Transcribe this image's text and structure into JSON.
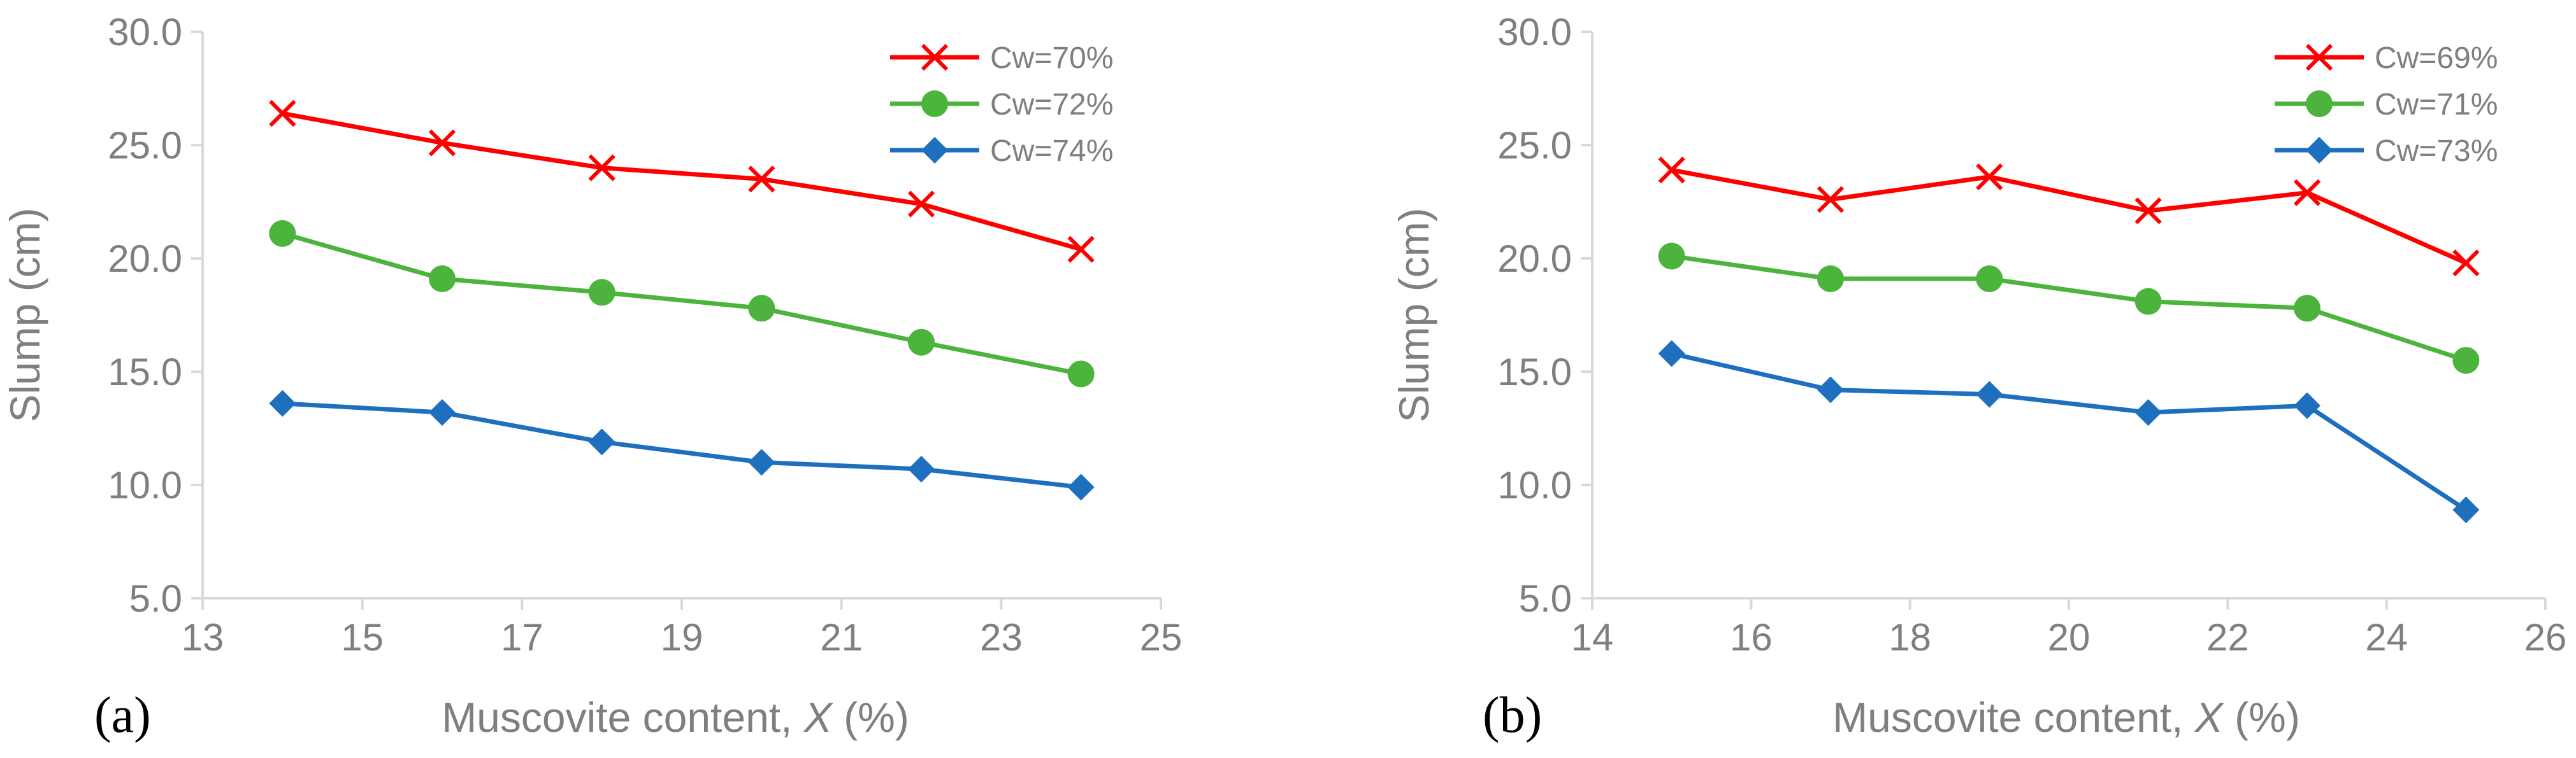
{
  "chart_data": [
    {
      "type": "line",
      "panel_label": "(a)",
      "title": "",
      "xlabel_prefix": "Muscovite content, ",
      "xlabel_var": "X",
      "xlabel_suffix": " (%)",
      "ylabel": "Slump (cm)",
      "xlim": [
        13,
        25
      ],
      "ylim": [
        5,
        30
      ],
      "xticks": [
        "13",
        "15",
        "17",
        "19",
        "21",
        "23",
        "25"
      ],
      "yticks": [
        "5.0",
        "10.0",
        "15.0",
        "20.0",
        "25.0",
        "30.0"
      ],
      "x": [
        14,
        16,
        18,
        20,
        22,
        24
      ],
      "legend_position": "top-right",
      "grid": false,
      "series": [
        {
          "name": "Cw=70%",
          "marker": "x",
          "color": "#ff0000",
          "values": [
            26.4,
            25.1,
            24.0,
            23.5,
            22.4,
            20.4
          ]
        },
        {
          "name": "Cw=72%",
          "marker": "circle",
          "color": "#4cb33d",
          "values": [
            21.1,
            19.1,
            18.5,
            17.8,
            16.3,
            14.9
          ]
        },
        {
          "name": "Cw=74%",
          "marker": "diamond",
          "color": "#1f6fbf",
          "values": [
            13.6,
            13.2,
            11.9,
            11.0,
            10.7,
            9.9
          ]
        }
      ]
    },
    {
      "type": "line",
      "panel_label": "(b)",
      "title": "",
      "xlabel_prefix": "Muscovite content, ",
      "xlabel_var": "X",
      "xlabel_suffix": " (%)",
      "ylabel": "Slump (cm)",
      "xlim": [
        14,
        26
      ],
      "ylim": [
        5,
        30
      ],
      "xticks": [
        "14",
        "16",
        "18",
        "20",
        "22",
        "24",
        "26"
      ],
      "yticks": [
        "5.0",
        "10.0",
        "15.0",
        "20.0",
        "25.0",
        "30.0"
      ],
      "x": [
        15,
        17,
        19,
        21,
        23,
        25
      ],
      "legend_position": "top-right",
      "grid": false,
      "series": [
        {
          "name": "Cw=69%",
          "marker": "x",
          "color": "#ff0000",
          "values": [
            23.9,
            22.6,
            23.6,
            22.1,
            22.9,
            19.8
          ]
        },
        {
          "name": "Cw=71%",
          "marker": "circle",
          "color": "#4cb33d",
          "values": [
            20.1,
            19.1,
            19.1,
            18.1,
            17.8,
            15.5
          ]
        },
        {
          "name": "Cw=73%",
          "marker": "diamond",
          "color": "#1f6fbf",
          "values": [
            15.8,
            14.2,
            14.0,
            13.2,
            13.5,
            8.9
          ]
        }
      ]
    }
  ]
}
